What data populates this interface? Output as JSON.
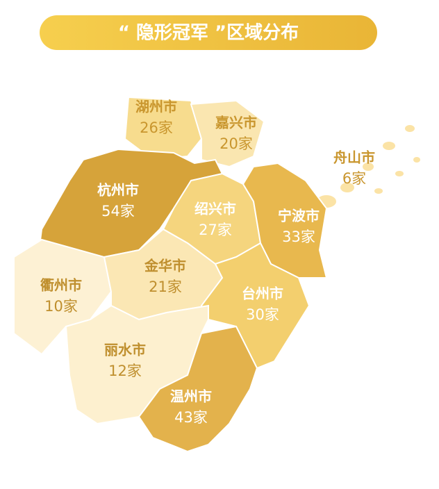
{
  "title": "“ 隐形冠军 ”区域分布",
  "regions": [
    {
      "name": "湖州市",
      "count": "26家"
    },
    {
      "name": "嘉兴市",
      "count": "20家"
    },
    {
      "name": "舟山市",
      "count": "6家"
    },
    {
      "name": "杭州市",
      "count": "54家"
    },
    {
      "name": "绍兴市",
      "count": "27家"
    },
    {
      "name": "宁波市",
      "count": "33家"
    },
    {
      "name": "衢州市",
      "count": "10家"
    },
    {
      "name": "金华市",
      "count": "21家"
    },
    {
      "name": "台州市",
      "count": "30家"
    },
    {
      "name": "丽水市",
      "count": "12家"
    },
    {
      "name": "温州市",
      "count": "43家"
    }
  ]
}
